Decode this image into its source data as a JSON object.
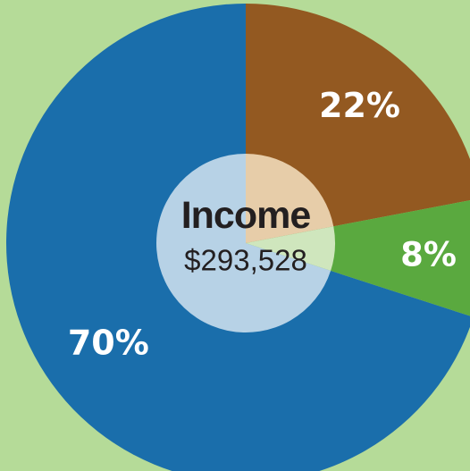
{
  "chart_data": {
    "type": "pie",
    "title": "",
    "center_label": "Income",
    "center_value": "$293,528",
    "slices": [
      {
        "label": "70%",
        "value": 70,
        "color": "#1a6eab",
        "center_color": "#b7d2e6"
      },
      {
        "label": "22%",
        "value": 22,
        "color": "#935921",
        "center_color": "#e7cda9"
      },
      {
        "label": "8%",
        "value": 8,
        "color": "#5aa93f",
        "center_color": "#cfe6bd"
      }
    ],
    "legend": "none",
    "background": "#b5db98"
  }
}
